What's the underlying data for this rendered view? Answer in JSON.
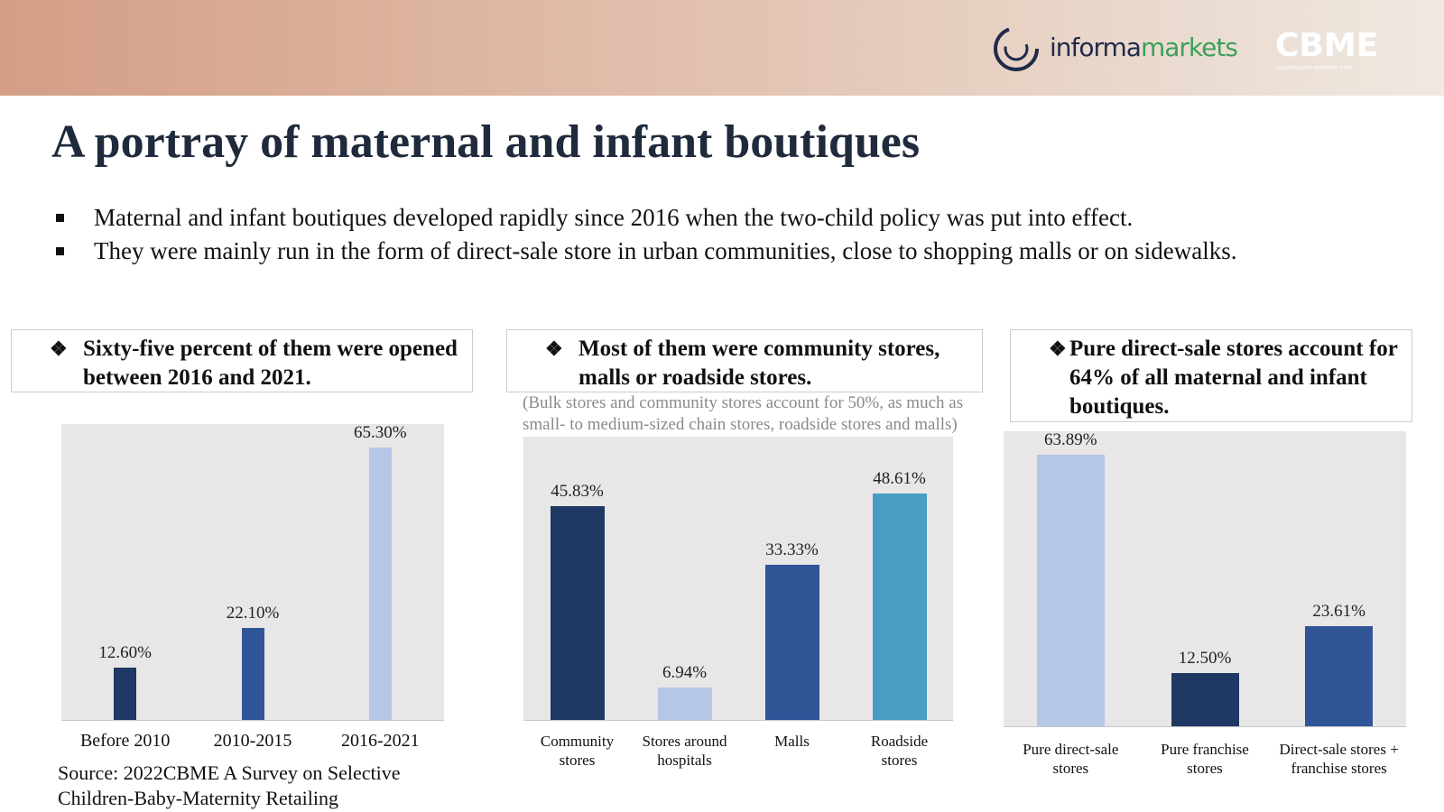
{
  "header": {
    "logo_informa": "informa",
    "logo_markets": "markets",
    "logo_cbme": "CBME",
    "logo_cbme_tagline": "CHILDREN BABY MATERNITY EXPO"
  },
  "title": "A portray of maternal and infant boutiques",
  "bullets": [
    "Maternal and infant boutiques developed rapidly since 2016 when the two-child policy was put into effect.",
    "They were mainly run in the form of direct-sale store in urban communities, close to shopping malls or on sidewalks."
  ],
  "source": "Source: 2022CBME A Survey on Selective Children-Baby-Maternity Retailing",
  "chart_data": [
    {
      "type": "bar",
      "title": "Sixty-five percent of them were opened between 2016 and 2021.",
      "categories": [
        "Before 2010",
        "2010-2015",
        "2016-2021"
      ],
      "values": [
        12.6,
        22.1,
        65.3
      ],
      "value_labels": [
        "12.60%",
        "22.10%",
        "65.30%"
      ],
      "colors": [
        "#1f3864",
        "#2f5597",
        "#b4c7e7"
      ]
    },
    {
      "type": "bar",
      "title": "Most of them were community stores, malls or roadside stores.",
      "subtitle": "(Bulk stores and community stores account for 50%, as much as small- to medium-sized chain stores, roadside stores and malls)",
      "categories": [
        "Community stores",
        "Stores around hospitals",
        "Malls",
        "Roadside stores"
      ],
      "values": [
        45.83,
        6.94,
        33.33,
        48.61
      ],
      "value_labels": [
        "45.83%",
        "6.94%",
        "33.33%",
        "48.61%"
      ],
      "colors": [
        "#1f3864",
        "#b4c7e7",
        "#2f5597",
        "#4a9dc2"
      ]
    },
    {
      "type": "bar",
      "title": "Pure direct-sale stores account for 64% of all maternal and infant boutiques.",
      "categories": [
        "Pure direct-sale stores",
        "Pure franchise stores",
        "Direct-sale stores + franchise stores"
      ],
      "values": [
        63.89,
        12.5,
        23.61
      ],
      "value_labels": [
        "63.89%",
        "12.50%",
        "23.61%"
      ],
      "colors": [
        "#b4c7e7",
        "#1f3864",
        "#2f5597"
      ]
    }
  ]
}
